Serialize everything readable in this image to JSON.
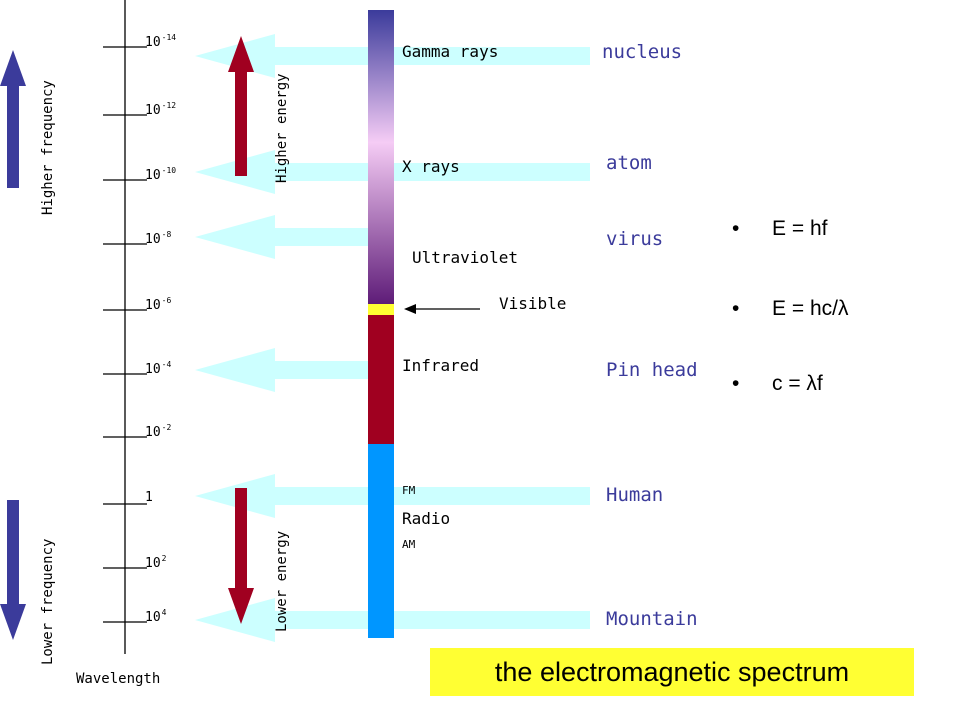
{
  "colors": {
    "light_arrow": "#ccffff",
    "axis_line": "#000000",
    "frequency_arrow": "#3b3b9b",
    "energy_arrow": "#a00020",
    "gradient_top": "#3b3b9b",
    "gradient_mid": "#f5ccf5",
    "gradient_bottom": "#5e1c78",
    "visible_band": "#ffff33",
    "infrared_band": "#a00020",
    "radio_band": "#0096ff",
    "size_text": "#3b3b9b",
    "title_bg": "#ffff33"
  },
  "wavelength_axis": {
    "label": "Wavelength",
    "ticks": [
      {
        "base": "10",
        "exp": "-14"
      },
      {
        "base": "10",
        "exp": "-12"
      },
      {
        "base": "10",
        "exp": "-10"
      },
      {
        "base": "10",
        "exp": "-8"
      },
      {
        "base": "10",
        "exp": "-6"
      },
      {
        "base": "10",
        "exp": "-4"
      },
      {
        "base": "10",
        "exp": "-2"
      },
      {
        "base": "1",
        "exp": ""
      },
      {
        "base": "10",
        "exp": "2"
      },
      {
        "base": "10",
        "exp": "4"
      }
    ]
  },
  "side_labels": {
    "higher_frequency": "Higher frequency",
    "lower_frequency": "Lower frequency",
    "higher_energy": "Higher energy",
    "lower_energy": "Lower energy"
  },
  "bands": {
    "gamma": "Gamma rays",
    "xray": "X rays",
    "ultraviolet": "Ultraviolet",
    "visible": "Visible",
    "infrared": "Infrared",
    "fm": "FM",
    "radio": "Radio",
    "am": "AM"
  },
  "size_comparisons": [
    "nucleus",
    "atom",
    "virus",
    "Pin head",
    "Human",
    "Mountain"
  ],
  "equations": [
    "E = hf",
    "E = hc/λ",
    "c = λf"
  ],
  "equation_bullet": "•",
  "title": "the electromagnetic spectrum"
}
